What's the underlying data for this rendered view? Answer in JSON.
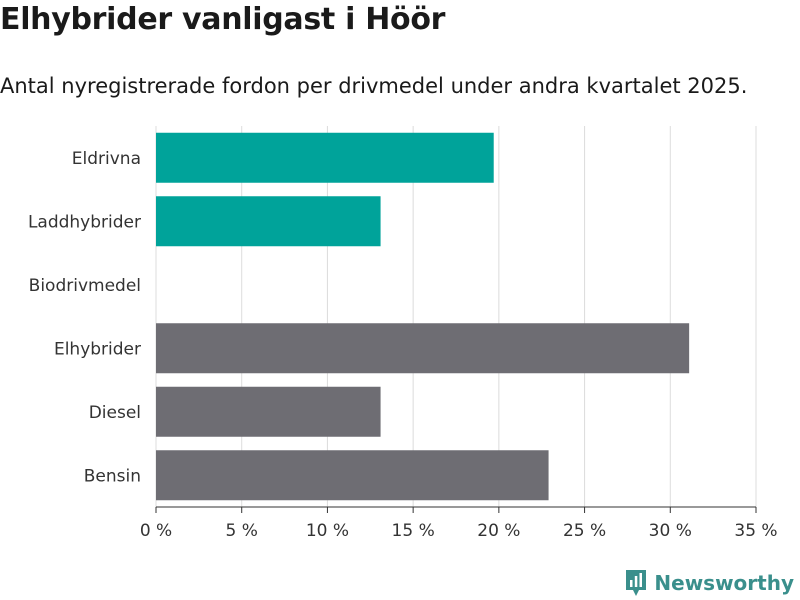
{
  "title": "Elhybrider vanligast i Höör",
  "subtitle": "Antal nyregistrerade fordon per drivmedel under andra kvartalet 2025.",
  "brand": {
    "name": "Newsworthy",
    "icon": "newsworthy-logo-icon",
    "color": "#3a8f8c"
  },
  "chart_data": {
    "type": "bar",
    "orientation": "horizontal",
    "categories": [
      "Eldrivna",
      "Laddhybrider",
      "Biodrivmedel",
      "Elhybrider",
      "Diesel",
      "Bensin"
    ],
    "values": [
      19.7,
      13.1,
      0,
      31.1,
      13.1,
      22.9
    ],
    "bar_colors": [
      "#00a39a",
      "#00a39a",
      "#00a39a",
      "#6e6d73",
      "#6e6d73",
      "#6e6d73"
    ],
    "xlim": [
      0,
      35
    ],
    "xticks": [
      0,
      5,
      10,
      15,
      20,
      25,
      30,
      35
    ],
    "tick_labels": [
      "0 %",
      "5 %",
      "10 %",
      "15 %",
      "20 %",
      "25 %",
      "30 %",
      "35 %"
    ],
    "grid": true
  }
}
